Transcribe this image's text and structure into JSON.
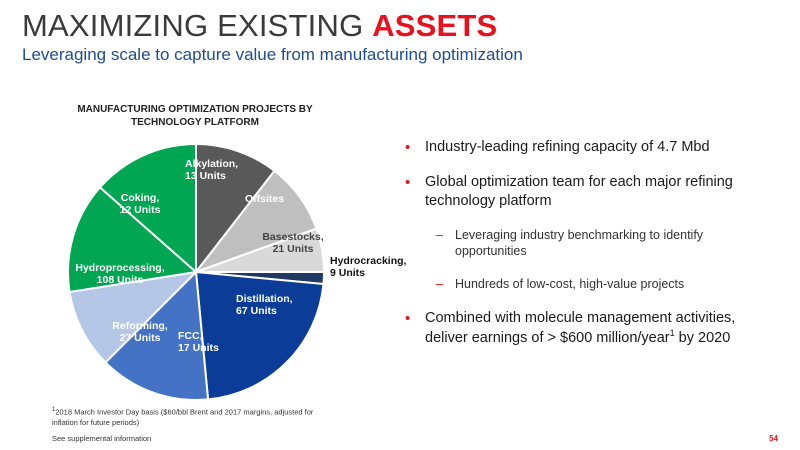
{
  "header": {
    "title_main": "MAXIMIZING EXISTING ",
    "title_accent": "ASSETS",
    "subtitle": "Leveraging scale to capture value from manufacturing optimization"
  },
  "colors": {
    "accent_red": "#e8111d",
    "subtitle_blue": "#1f4e8c"
  },
  "chart_data": {
    "type": "pie",
    "title": "MANUFACTURING OPTIMIZATION PROJECTS BY TECHNOLOGY PLATFORM",
    "start_angle_deg": -90,
    "direction": "clockwise",
    "slices": [
      {
        "key": "alkylation",
        "label": "Alkylation,",
        "value_label": "13 Units",
        "value": 10.5,
        "color": "#595959"
      },
      {
        "key": "offsites",
        "label": "Offsites",
        "value_label": "",
        "value": 9.0,
        "color": "#bfbfbf"
      },
      {
        "key": "basestocks",
        "label": "Basestocks,",
        "value_label": "21 Units",
        "value": 5.5,
        "color": "#d9d9d9"
      },
      {
        "key": "hydrocracking",
        "label": "Hydrocracking,",
        "value_label": "9 Units",
        "value": 1.5,
        "color": "#1f3864"
      },
      {
        "key": "distillation",
        "label": "Distillation,",
        "value_label": "67 Units",
        "value": 22.0,
        "color": "#0b3c97"
      },
      {
        "key": "fcc",
        "label": "FCC,",
        "value_label": "17 Units",
        "value": 14.0,
        "color": "#4472c4"
      },
      {
        "key": "reforming",
        "label": "Reforming,",
        "value_label": "27 Units",
        "value": 10.0,
        "color": "#b4c7e7"
      },
      {
        "key": "hydroprocessing",
        "label": "Hydroprocessing,",
        "value_label": "108 Units",
        "value": 14.0,
        "color": "#00a651"
      },
      {
        "key": "coking",
        "label": "Coking,",
        "value_label": "12 Units",
        "value": 13.5,
        "color": "#00a651"
      }
    ]
  },
  "bullets": [
    {
      "kind": "main",
      "text": "Industry-leading refining capacity of 4.7 Mbd"
    },
    {
      "kind": "main",
      "text": "Global optimization team for each major refining technology platform"
    },
    {
      "kind": "sub",
      "text": "Leveraging industry benchmarking to identify opportunities"
    },
    {
      "kind": "sub",
      "text": "Hundreds of low-cost, high-value projects"
    },
    {
      "kind": "main",
      "text": "Combined with molecule management activities, deliver earnings of > $600 million/year",
      "sup": "1",
      "tail": " by 2020"
    }
  ],
  "footnote": {
    "sup": "1",
    "text": "2018 March Investor Day basis ($60/bbl Brent and 2017 margins, adjusted for inflation for future periods)"
  },
  "supplemental": "See supplemental information",
  "page_number": "54"
}
